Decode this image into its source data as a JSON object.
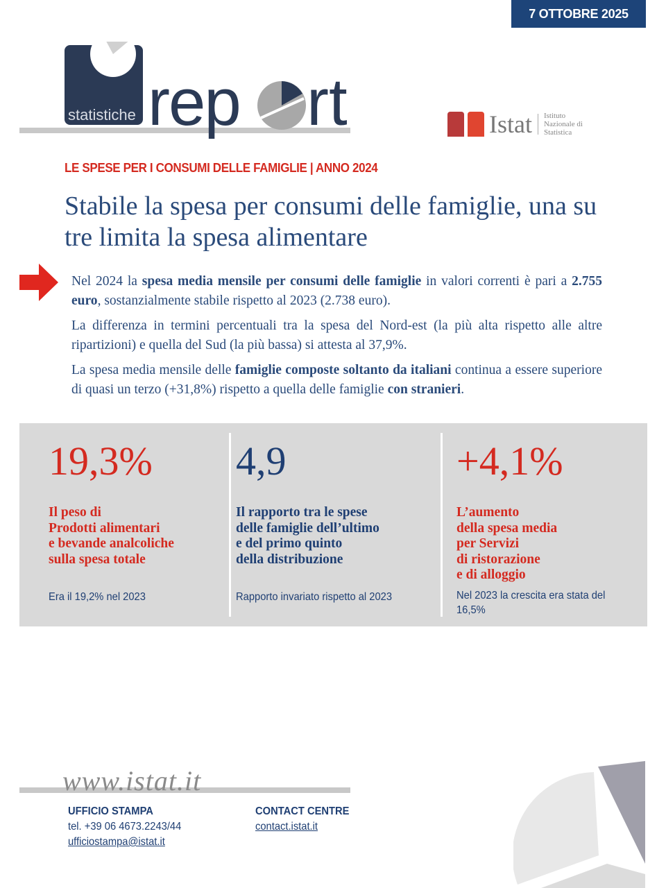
{
  "header": {
    "date": "7 OTTOBRE 2025",
    "logo_text_small": "statistiche",
    "logo_text_large": "report",
    "istat_logo": "Istat",
    "istat_full": "Istituto Nazionale di Statistica"
  },
  "subtitle": "LE SPESE PER I CONSUMI DELLE FAMIGLIE | ANNO 2024",
  "title": "Stabile la spesa per consumi delle famiglie, una su tre limita la spesa alimentare",
  "paragraphs": [
    [
      {
        "t": "Nel 2024 la "
      },
      {
        "t": "spesa media mensile per consumi delle famiglie",
        "b": true
      },
      {
        "t": " in valori correnti è pari a "
      },
      {
        "t": "2.755 euro",
        "b": true
      },
      {
        "t": ", sostanzialmente stabile rispetto al 2023 (2.738 euro)."
      }
    ],
    [
      {
        "t": "La differenza in termini percentuali tra la spesa del Nord-est (la più alta rispetto alle altre ripartizioni) e quella del Sud (la più bassa) si attesta al 37,9%."
      }
    ],
    [
      {
        "t": "La spesa media mensile delle "
      },
      {
        "t": "famiglie composte soltanto da italiani",
        "b": true
      },
      {
        "t": " continua a essere superiore di quasi un terzo (+31,8%) rispetto a quella delle famiglie "
      },
      {
        "t": "con stranieri",
        "b": true
      },
      {
        "t": "."
      }
    ]
  ],
  "stats": [
    {
      "value": "19,3%",
      "label": "Il peso di\nProdotti alimentari\ne bevande analcoliche\nsulla spesa totale",
      "note": "Era il 19,2% nel 2023",
      "color": "#d42a20"
    },
    {
      "value": "4,9",
      "label": "Il rapporto tra le spese\ndelle famiglie dell’ultimo\ne del primo quinto\ndella distribuzione",
      "note": "Rapporto invariato rispetto al 2023",
      "color": "#1f3f73"
    },
    {
      "value": "+4,1%",
      "label": "L’aumento\ndella spesa media\nper Servizi\ndi ristorazione\ne di alloggio",
      "note": "Nel 2023 la crescita era stata del 16,5%",
      "color": "#d42a20"
    }
  ],
  "footer": {
    "website": "www.istat.it",
    "press_title": "UFFICIO STAMPA",
    "press_phone": "tel. +39 06 4673.2243/44",
    "press_email": "ufficiostampa@istat.it",
    "contact_title": "CONTACT CENTRE",
    "contact_link": "contact.istat.it"
  }
}
